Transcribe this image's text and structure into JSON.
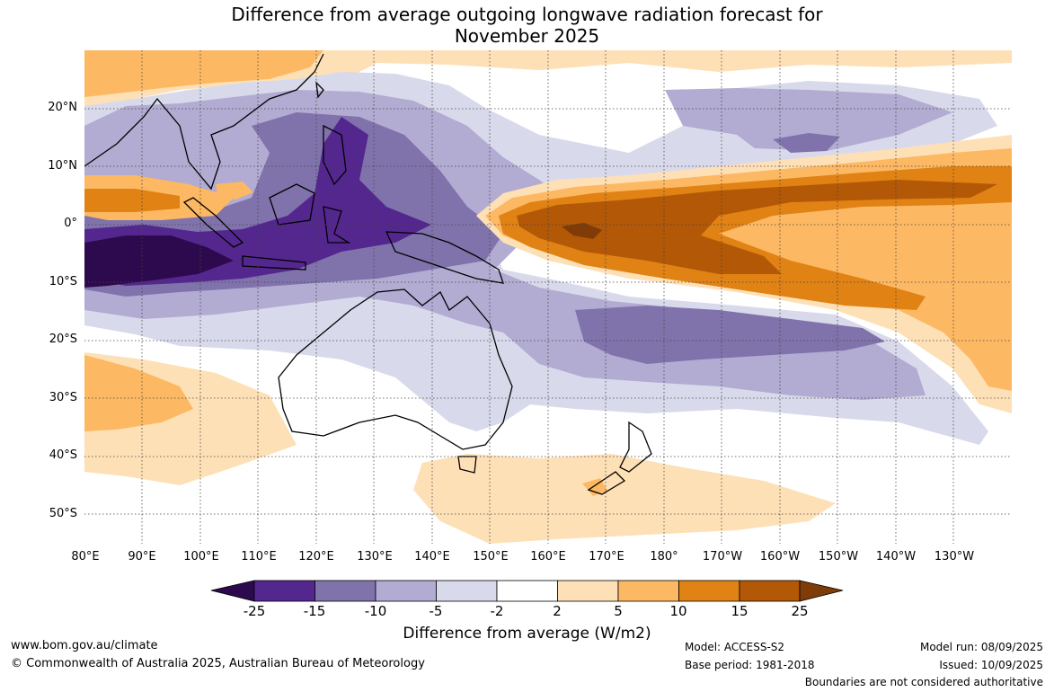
{
  "title": {
    "line1": "Difference from average outgoing longwave radiation forecast for",
    "line2": "November 2025"
  },
  "map": {
    "lon_labels": [
      "80°E",
      "90°E",
      "100°E",
      "110°E",
      "120°E",
      "130°E",
      "140°E",
      "150°E",
      "160°E",
      "170°E",
      "180°",
      "170°W",
      "160°W",
      "150°W",
      "140°W",
      "130°W"
    ],
    "lat_labels": [
      "20°N",
      "10°N",
      "0°",
      "10°S",
      "20°S",
      "30°S",
      "40°S",
      "50°S"
    ]
  },
  "colorbar": {
    "title": "Difference from average (W/m2)",
    "ticks": [
      "-25",
      "-15",
      "-10",
      "-5",
      "-2",
      "2",
      "5",
      "10",
      "15",
      "25"
    ],
    "colors": [
      "#2d0a4e",
      "#54278f",
      "#8073ac",
      "#b2abd2",
      "#d8daeb",
      "#ffffff",
      "#fee0b6",
      "#fdb863",
      "#e08214",
      "#b35806",
      "#7f3b08"
    ]
  },
  "footer": {
    "url": "www.bom.gov.au/climate",
    "copyright": "© Commonwealth of Australia 2025, Australian Bureau of Meteorology",
    "model": "Model: ACCESS-S2",
    "base_period": "Base period: 1981-2018",
    "model_run": "Model run: 08/09/2025",
    "issued": "Issued: 10/09/2025",
    "disclaimer": "Boundaries are not considered authoritative"
  }
}
